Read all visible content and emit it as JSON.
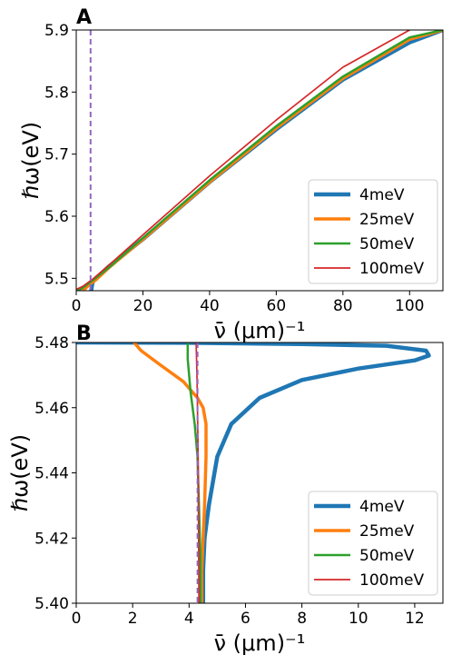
{
  "chart_data": [
    {
      "panel": "A",
      "type": "line",
      "xlabel": "ν̄ (μm)⁻¹",
      "ylabel": "ℏω(eV)",
      "xlim": [
        0,
        110
      ],
      "ylim": [
        5.48,
        5.9
      ],
      "xticks": [
        0,
        20,
        40,
        60,
        80,
        100
      ],
      "yticks": [
        5.5,
        5.6,
        5.7,
        5.8,
        5.9
      ],
      "ytick_labels": [
        "5.5",
        "5.6",
        "5.7",
        "5.8",
        "5.9"
      ],
      "grid": false,
      "legend_position": "lower right",
      "series": [
        {
          "name": "4meV",
          "color": "#1f77b4",
          "width": 4.5,
          "points": [
            [
              4.5,
              5.48
            ],
            [
              4.7,
              5.488
            ],
            [
              5,
              5.495
            ],
            [
              6,
              5.5
            ],
            [
              10,
              5.52
            ],
            [
              20,
              5.563
            ],
            [
              40,
              5.655
            ],
            [
              60,
              5.74
            ],
            [
              80,
              5.82
            ],
            [
              100,
              5.88
            ],
            [
              110,
              5.9
            ]
          ]
        },
        {
          "name": "25meV",
          "color": "#ff7f0e",
          "width": 3.5,
          "points": [
            [
              2,
              5.48
            ],
            [
              4,
              5.49
            ],
            [
              6,
              5.498
            ],
            [
              10,
              5.518
            ],
            [
              20,
              5.563
            ],
            [
              40,
              5.655
            ],
            [
              60,
              5.742
            ],
            [
              80,
              5.822
            ],
            [
              100,
              5.885
            ],
            [
              110,
              5.9
            ]
          ]
        },
        {
          "name": "50meV",
          "color": "#2ca02c",
          "width": 2.5,
          "points": [
            [
              0.5,
              5.48
            ],
            [
              2,
              5.485
            ],
            [
              5,
              5.497
            ],
            [
              10,
              5.518
            ],
            [
              20,
              5.565
            ],
            [
              40,
              5.658
            ],
            [
              60,
              5.745
            ],
            [
              80,
              5.825
            ],
            [
              100,
              5.888
            ],
            [
              110,
              5.9
            ]
          ]
        },
        {
          "name": "100meV",
          "color": "#d62728",
          "width": 1.7,
          "points": [
            [
              0,
              5.482
            ],
            [
              2,
              5.487
            ],
            [
              5,
              5.499
            ],
            [
              10,
              5.522
            ],
            [
              20,
              5.57
            ],
            [
              40,
              5.665
            ],
            [
              60,
              5.755
            ],
            [
              80,
              5.84
            ],
            [
              100,
              5.9
            ]
          ]
        }
      ],
      "vline": {
        "x": 4.3,
        "color": "#9467bd",
        "dash": "6,4"
      }
    },
    {
      "panel": "B",
      "type": "line",
      "xlabel": "ν̄ (μm)⁻¹",
      "ylabel": "ℏω(eV)",
      "xlim": [
        0,
        13
      ],
      "ylim": [
        5.4,
        5.48
      ],
      "xticks": [
        0,
        2,
        4,
        6,
        8,
        10,
        12
      ],
      "yticks": [
        5.4,
        5.42,
        5.44,
        5.46,
        5.48
      ],
      "ytick_labels": [
        "5.40",
        "5.42",
        "5.44",
        "5.46",
        "5.48"
      ],
      "grid": false,
      "legend_position": "lower right",
      "series": [
        {
          "name": "4meV",
          "color": "#1f77b4",
          "width": 4.5,
          "points": [
            [
              0,
              5.48
            ],
            [
              4,
              5.4799
            ],
            [
              8,
              5.4795
            ],
            [
              11,
              5.479
            ],
            [
              12.4,
              5.4775
            ],
            [
              12.5,
              5.476
            ],
            [
              12,
              5.4745
            ],
            [
              10,
              5.472
            ],
            [
              8,
              5.4685
            ],
            [
              6.5,
              5.463
            ],
            [
              5.5,
              5.455
            ],
            [
              5,
              5.445
            ],
            [
              4.7,
              5.43
            ],
            [
              4.55,
              5.42
            ],
            [
              4.5,
              5.41
            ],
            [
              4.5,
              5.4
            ]
          ]
        },
        {
          "name": "25meV",
          "color": "#ff7f0e",
          "width": 3.5,
          "points": [
            [
              2.05,
              5.48
            ],
            [
              2.3,
              5.4775
            ],
            [
              3,
              5.473
            ],
            [
              3.8,
              5.468
            ],
            [
              4.3,
              5.463
            ],
            [
              4.5,
              5.46
            ],
            [
              4.6,
              5.455
            ],
            [
              4.6,
              5.445
            ],
            [
              4.55,
              5.43
            ],
            [
              4.5,
              5.42
            ],
            [
              4.45,
              5.41
            ],
            [
              4.45,
              5.4
            ]
          ]
        },
        {
          "name": "50meV",
          "color": "#2ca02c",
          "width": 2.5,
          "points": [
            [
              3.95,
              5.48
            ],
            [
              3.95,
              5.475
            ],
            [
              4.05,
              5.465
            ],
            [
              4.2,
              5.455
            ],
            [
              4.3,
              5.445
            ],
            [
              4.35,
              5.43
            ],
            [
              4.4,
              5.415
            ],
            [
              4.4,
              5.4
            ]
          ]
        },
        {
          "name": "100meV",
          "color": "#d62728",
          "width": 1.7,
          "points": [
            [
              4.25,
              5.48
            ],
            [
              4.28,
              5.47
            ],
            [
              4.3,
              5.46
            ],
            [
              4.32,
              5.445
            ],
            [
              4.33,
              5.43
            ],
            [
              4.34,
              5.415
            ],
            [
              4.35,
              5.4
            ]
          ]
        }
      ],
      "vline": {
        "x": 4.3,
        "color": "#9467bd",
        "dash": "6,4"
      }
    }
  ]
}
